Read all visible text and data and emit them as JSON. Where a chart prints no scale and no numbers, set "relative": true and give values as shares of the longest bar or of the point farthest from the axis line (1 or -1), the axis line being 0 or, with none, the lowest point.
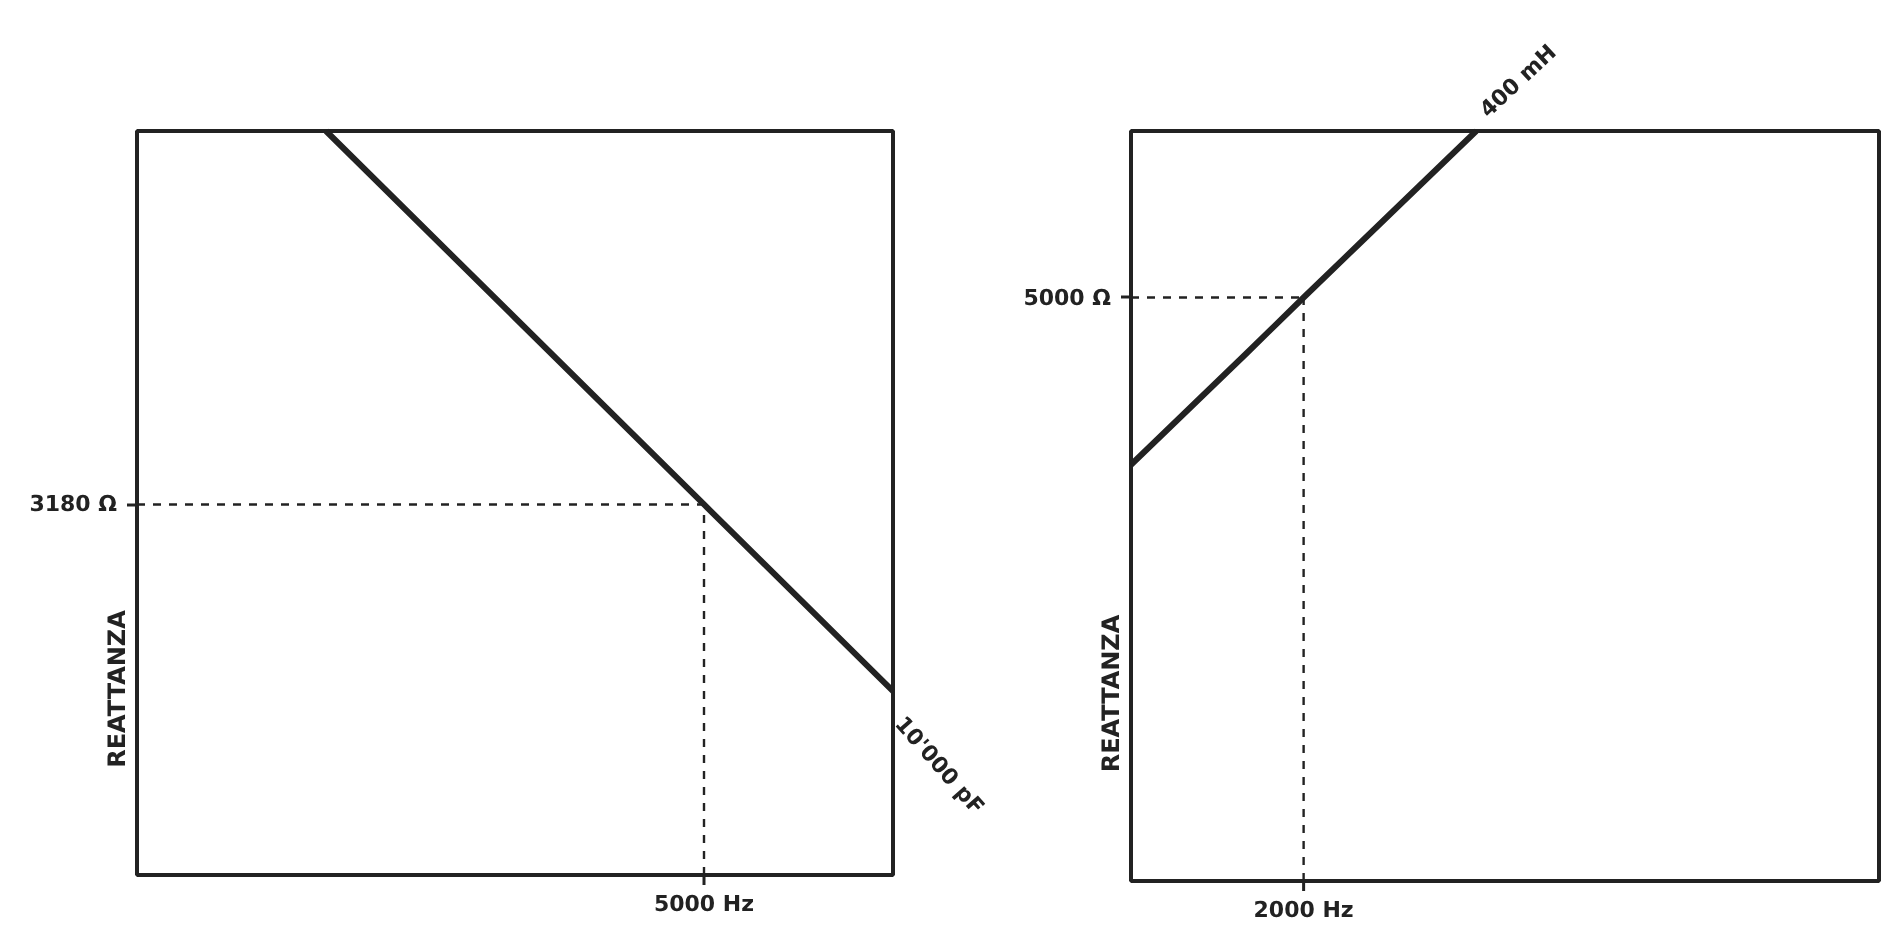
{
  "chart_data": [
    {
      "type": "line",
      "relative": true,
      "ylabel": "REATTANZA",
      "marker": "none",
      "line_style": "solid",
      "categories": [
        null,
        null,
        null,
        null,
        null
      ],
      "series": [
        {
          "name": "10'000 pF",
          "color": "#222222",
          "values": [
            null,
            1.0,
            0.749,
            0.498,
            0.247
          ]
        }
      ],
      "ref_lines": [
        {
          "axis": "y",
          "value": 0.498,
          "label": "3180 Ω",
          "line_style": "dashed",
          "color": "#222222"
        }
      ],
      "annotations": [
        "5000 Hz"
      ]
    },
    {
      "type": "line",
      "relative": true,
      "ylabel": "REATTANZA",
      "marker": "none",
      "line_style": "solid",
      "categories": [
        null,
        null,
        null,
        null,
        null,
        null,
        null,
        null,
        null,
        null,
        null,
        null,
        null,
        null
      ],
      "series": [
        {
          "name": "400 mH",
          "color": "#222222",
          "values": [
            0.555,
            0.629,
            0.703,
            0.778,
            0.852,
            0.926,
            1.0,
            null,
            null,
            null,
            null,
            null,
            null,
            null
          ]
        }
      ],
      "ref_lines": [
        {
          "axis": "y",
          "value": 0.778,
          "label": "5000 Ω",
          "line_style": "dashed",
          "color": "#222222"
        }
      ],
      "annotations": [
        "2000 Hz"
      ]
    }
  ]
}
